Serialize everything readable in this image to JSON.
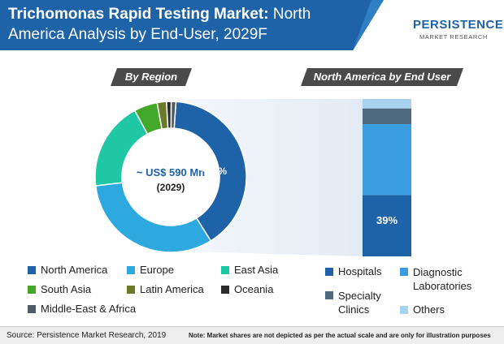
{
  "header": {
    "title_bold": "Trichomonas Rapid Testing Market:",
    "title_rest": " North America Analysis by End-User, 2029F"
  },
  "logo": {
    "main": "PERSISTENCE",
    "sub": "MARKET RESEARCH"
  },
  "tags": {
    "by_region": "By Region",
    "na_end_user": "North America by End User"
  },
  "chart_data": [
    {
      "type": "pie",
      "title": "By Region",
      "center_value": "~ US$ 590 Mn",
      "center_year": "(2029)",
      "highlight_label": "~40%",
      "categories": [
        "North America",
        "Europe",
        "East Asia",
        "South Asia",
        "Latin America",
        "Oceania",
        "Middle-East & Africa"
      ],
      "values": [
        40,
        32,
        19,
        5,
        2,
        1,
        1
      ],
      "colors": [
        "#1e62a8",
        "#2ea9e0",
        "#1fc7a5",
        "#43a829",
        "#6a7a2a",
        "#2b2b2b",
        "#4f5b66"
      ]
    },
    {
      "type": "bar",
      "title": "North America by End User",
      "categories": [
        "Hospitals",
        "Diagnostic Laboratories",
        "Specialty Clinics",
        "Others"
      ],
      "values": [
        39,
        45,
        10,
        6
      ],
      "stacked": true,
      "highlight_label": "39%",
      "colors": [
        "#1e62a8",
        "#3a9de0",
        "#4f6b80",
        "#a7d3ee"
      ]
    }
  ],
  "legend_region": [
    {
      "label": "North America",
      "color": "#1e62a8"
    },
    {
      "label": "Europe",
      "color": "#2ea9e0"
    },
    {
      "label": "East Asia",
      "color": "#1fc7a5"
    },
    {
      "label": "South Asia",
      "color": "#43a829"
    },
    {
      "label": "Latin America",
      "color": "#6a7a2a"
    },
    {
      "label": "Oceania",
      "color": "#2b2b2b"
    },
    {
      "label": "Middle-East & Africa",
      "color": "#4f5b66"
    }
  ],
  "legend_enduser": [
    {
      "label": "Hospitals",
      "color": "#1e62a8"
    },
    {
      "label_line1": "Diagnostic",
      "label_line2": "Laboratories",
      "color": "#3a9de0"
    },
    {
      "label_line1": "Specialty",
      "label_line2": "Clinics",
      "color": "#4f6b80"
    },
    {
      "label": "Others",
      "color": "#a7d3ee"
    }
  ],
  "footer": {
    "source": "Source: Persistence Market Research, 2019",
    "note": "Note: Market shares are not depicted as per the actual scale and are only for illustration purposes"
  }
}
